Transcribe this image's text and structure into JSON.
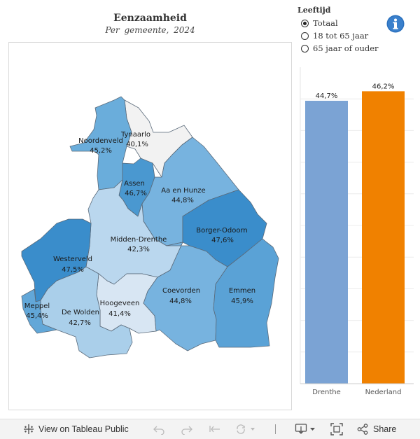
{
  "header": {
    "title": "Eenzaamheid",
    "subtitle": "Per gemeente, 2024"
  },
  "filter": {
    "title": "Leeftijd",
    "options": [
      {
        "label": "Totaal",
        "selected": true
      },
      {
        "label": "18 tot 65 jaar",
        "selected": false
      },
      {
        "label": "65 jaar of ouder",
        "selected": false
      }
    ]
  },
  "info_icon": "info-icon",
  "map": {
    "municipalities": [
      {
        "name": "Tynaarlo",
        "value": "40,1%",
        "color": "#f2f2f2"
      },
      {
        "name": "Noordenveld",
        "value": "45,2%",
        "color": "#6aaddb"
      },
      {
        "name": "Assen",
        "value": "46,7%",
        "color": "#4a98d0"
      },
      {
        "name": "Aa en Hunze",
        "value": "44,8%",
        "color": "#77b3df"
      },
      {
        "name": "Borger-Odoorn",
        "value": "47,6%",
        "color": "#3a8dcb"
      },
      {
        "name": "Midden-Drenthe",
        "value": "42,3%",
        "color": "#bad7ee"
      },
      {
        "name": "Westerveld",
        "value": "47,5%",
        "color": "#3a8dcb"
      },
      {
        "name": "Hoogeveen",
        "value": "41,4%",
        "color": "#d8e6f3"
      },
      {
        "name": "De Wolden",
        "value": "42,7%",
        "color": "#aacfea"
      },
      {
        "name": "Meppel",
        "value": "45,4%",
        "color": "#62a7d8"
      },
      {
        "name": "Coevorden",
        "value": "44,8%",
        "color": "#77b3df"
      },
      {
        "name": "Emmen",
        "value": "45,9%",
        "color": "#5aa2d6"
      }
    ]
  },
  "chart_data": {
    "type": "bar",
    "title": "",
    "categories": [
      "Drenthe",
      "Nederland"
    ],
    "values": [
      44.7,
      46.2
    ],
    "value_labels": [
      "44,7%",
      "46,2%"
    ],
    "colors": [
      "#7ba3d4",
      "#f08100"
    ],
    "ylim": [
      0,
      50
    ],
    "gridlines": [
      0,
      5,
      10,
      15,
      20,
      25,
      30,
      35,
      40,
      45
    ],
    "grid": true
  },
  "toolbar": {
    "view_label": "View on Tableau Public",
    "share_label": "Share"
  }
}
